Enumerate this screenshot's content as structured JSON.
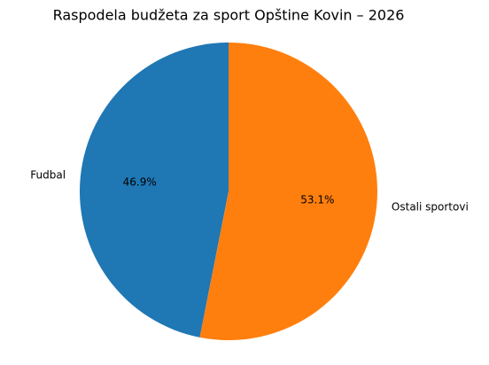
{
  "chart_data": {
    "type": "pie",
    "title": "Raspodela budžeta za sport Opštine Kovin – 2026",
    "categories": [
      "Fudbal",
      "Ostali sportovi"
    ],
    "values": [
      46.9,
      53.1
    ],
    "value_labels": [
      "46.9%",
      "53.1%"
    ],
    "colors": [
      "#1f77b4",
      "#ff7f0e"
    ]
  }
}
